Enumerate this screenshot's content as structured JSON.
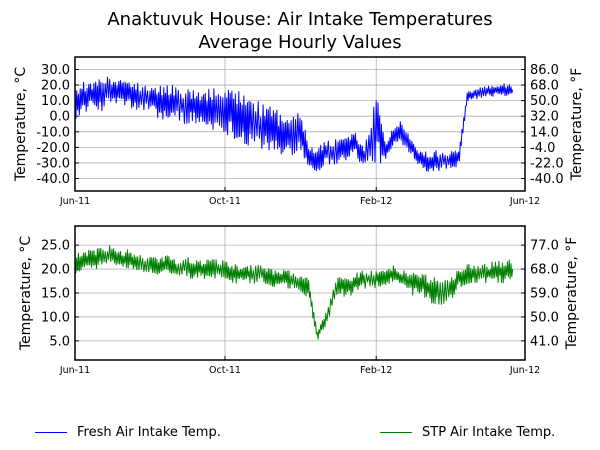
{
  "chart_data": [
    {
      "type": "line",
      "title": "Anaktuvuk House: Air Intake Temperatures",
      "subtitle": "Average Hourly Values",
      "ylabel": "Temperature, °C",
      "ylabel_right": "Temperature, °F",
      "ylim": [
        -48,
        38
      ],
      "y_ticks": [
        "30.0",
        "20.0",
        "10.0",
        "0.0",
        "-10.0",
        "-20.0",
        "-30.0",
        "-40.0"
      ],
      "y_ticks_right": [
        "86.0",
        "68.0",
        "50.0",
        "32.0",
        "14.0",
        "-4.0",
        "-22.0",
        "-40.0"
      ],
      "x_ticks": [
        "Jun-11",
        "Oct-11",
        "Feb-12",
        "Jun-12"
      ],
      "grid": true,
      "series": [
        {
          "name": "Fresh Air Intake Temp.",
          "color": "#0000ff",
          "x": [
            "2011-06-01",
            "2011-06-08",
            "2011-06-15",
            "2011-06-22",
            "2011-07-01",
            "2011-07-08",
            "2011-07-15",
            "2011-07-22",
            "2011-08-01",
            "2011-08-08",
            "2011-08-15",
            "2011-08-22",
            "2011-09-01",
            "2011-09-08",
            "2011-09-15",
            "2011-09-22",
            "2011-10-01",
            "2011-10-08",
            "2011-10-15",
            "2011-10-22",
            "2011-11-01",
            "2011-11-08",
            "2011-11-15",
            "2011-11-22",
            "2011-12-01",
            "2011-12-08",
            "2011-12-15",
            "2011-12-22",
            "2012-01-01",
            "2012-01-08",
            "2012-01-15",
            "2012-01-22",
            "2012-02-01",
            "2012-02-08",
            "2012-02-15",
            "2012-02-22",
            "2012-03-01",
            "2012-03-08",
            "2012-03-15",
            "2012-03-22",
            "2012-04-01",
            "2012-04-08",
            "2012-04-15",
            "2012-04-22",
            "2012-05-01",
            "2012-05-08",
            "2012-05-15",
            "2012-05-22"
          ],
          "y": [
            8,
            12,
            14,
            13,
            18,
            17,
            15,
            13,
            12,
            10,
            9,
            8,
            7,
            6,
            5,
            3,
            2,
            0,
            -3,
            -6,
            -10,
            -13,
            -15,
            -14,
            -10,
            -28,
            -30,
            -26,
            -25,
            -22,
            -18,
            -30,
            5,
            -25,
            -15,
            -10,
            -20,
            -28,
            -30,
            -29,
            -28,
            -27,
            14,
            15,
            16,
            17,
            17,
            17
          ],
          "y_min": [
            -2,
            2,
            4,
            3,
            8,
            7,
            5,
            3,
            2,
            -2,
            -3,
            -4,
            -5,
            -6,
            -8,
            -10,
            -11,
            -14,
            -18,
            -20,
            -22,
            -25,
            -28,
            -26,
            -22,
            -34,
            -36,
            -32,
            -31,
            -28,
            -24,
            -35,
            -30,
            -31,
            -20,
            -18,
            -25,
            -33,
            -36,
            -35,
            -34,
            -33,
            10,
            11,
            12,
            13,
            13,
            13
          ],
          "y_max": [
            20,
            22,
            24,
            24,
            26,
            25,
            24,
            22,
            22,
            20,
            21,
            20,
            20,
            19,
            18,
            19,
            18,
            17,
            15,
            12,
            10,
            8,
            4,
            6,
            8,
            -18,
            -20,
            -14,
            -14,
            -12,
            -10,
            -20,
            20,
            -15,
            -5,
            -3,
            -14,
            -22,
            -22,
            -22,
            -22,
            -20,
            16,
            18,
            20,
            20,
            21,
            20
          ]
        }
      ]
    },
    {
      "type": "line",
      "ylabel": "Temperature, °C",
      "ylabel_right": "Temperature, °F",
      "ylim": [
        1,
        29
      ],
      "y_ticks": [
        "25.0",
        "20.0",
        "15.0",
        "10.0",
        "5.0"
      ],
      "y_ticks_right": [
        "77.0",
        "68.0",
        "59.0",
        "50.0",
        "41.0"
      ],
      "x_ticks": [
        "Jun-11",
        "Oct-11",
        "Feb-12",
        "Jun-12"
      ],
      "grid": true,
      "series": [
        {
          "name": "STP Air Intake Temp.",
          "color": "#008000",
          "x": [
            "2011-06-01",
            "2011-06-08",
            "2011-06-15",
            "2011-06-22",
            "2011-07-01",
            "2011-07-08",
            "2011-07-15",
            "2011-07-22",
            "2011-08-01",
            "2011-08-08",
            "2011-08-15",
            "2011-08-22",
            "2011-09-01",
            "2011-09-08",
            "2011-09-15",
            "2011-09-22",
            "2011-10-01",
            "2011-10-08",
            "2011-10-15",
            "2011-10-22",
            "2011-11-01",
            "2011-11-08",
            "2011-11-15",
            "2011-11-22",
            "2011-12-01",
            "2011-12-08",
            "2011-12-15",
            "2011-12-22",
            "2012-01-01",
            "2012-01-08",
            "2012-01-15",
            "2012-01-22",
            "2012-02-01",
            "2012-02-08",
            "2012-02-15",
            "2012-02-22",
            "2012-03-01",
            "2012-03-08",
            "2012-03-15",
            "2012-03-22",
            "2012-04-01",
            "2012-04-08",
            "2012-04-15",
            "2012-04-22",
            "2012-05-01",
            "2012-05-08",
            "2012-05-15",
            "2012-05-22"
          ],
          "y": [
            20,
            21,
            22,
            22,
            23,
            22,
            22,
            21,
            21,
            21,
            21,
            21,
            20,
            21,
            20,
            20,
            20,
            19,
            19,
            19,
            19,
            18,
            18,
            18,
            17,
            16,
            5,
            9,
            17,
            16,
            17,
            18,
            18,
            18,
            19,
            18,
            18,
            17,
            17,
            16,
            16,
            18,
            19,
            19,
            19,
            19,
            20,
            20
          ],
          "y_min": [
            18,
            19,
            20,
            20,
            21,
            20,
            20,
            19,
            19,
            18,
            19,
            19,
            18,
            18,
            18,
            18,
            18,
            17,
            17,
            17,
            17,
            16,
            16,
            16,
            15,
            14,
            5,
            8,
            15,
            14,
            15,
            16,
            16,
            16,
            17,
            16,
            14,
            15,
            13,
            12,
            13,
            16,
            17,
            17,
            17,
            17,
            17,
            18
          ],
          "y_max": [
            23,
            24,
            24,
            25,
            25,
            24,
            24,
            23,
            23,
            23,
            23,
            22,
            23,
            22,
            22,
            22,
            22,
            21,
            21,
            21,
            21,
            20,
            20,
            20,
            19,
            18,
            7,
            11,
            19,
            18,
            19,
            20,
            20,
            21,
            21,
            20,
            20,
            19,
            19,
            18,
            18,
            20,
            21,
            21,
            21,
            22,
            22,
            22
          ]
        }
      ]
    }
  ],
  "legend": {
    "items": [
      {
        "label": "Fresh Air Intake Temp.",
        "color": "#0000ff"
      },
      {
        "label": "STP Air Intake Temp.",
        "color": "#008000"
      }
    ]
  }
}
